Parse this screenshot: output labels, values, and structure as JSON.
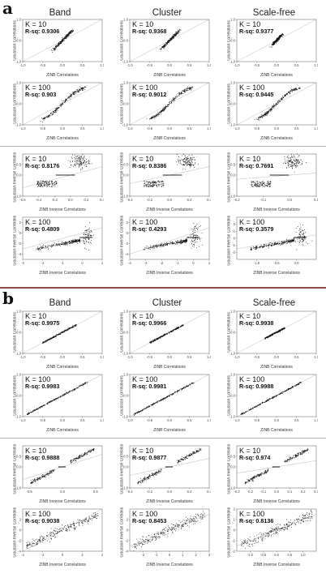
{
  "panels": [
    {
      "letter": "a",
      "column_titles": [
        "Band",
        "Cluster",
        "Scale-free"
      ],
      "row_blocks": [
        {
          "ylabel": "Gaussian Correlations",
          "xlabel": "ZINB Correlations",
          "rows": [
            {
              "k_label": "K = 10",
              "cells": [
                {
                  "rsq_label": "R-sq: 0.9306",
                  "xlim": [
                    -1,
                    1
                  ],
                  "ylim": [
                    -1,
                    1
                  ],
                  "xticks": [
                    "-1.0",
                    "-0.5",
                    "0.0",
                    "0.5",
                    "1.0"
                  ],
                  "yticks": [
                    "-1.0",
                    "0.0",
                    "1.0"
                  ],
                  "shape": "curve",
                  "spread": 0.35
                },
                {
                  "rsq_label": "R-sq: 0.9368",
                  "xlim": [
                    -1,
                    1
                  ],
                  "ylim": [
                    -1,
                    1
                  ],
                  "xticks": [
                    "-1.0",
                    "-0.5",
                    "0.0",
                    "0.5",
                    "1.0"
                  ],
                  "yticks": [
                    "-1.0",
                    "0.0",
                    "1.0"
                  ],
                  "shape": "curve",
                  "spread": 0.3
                },
                {
                  "rsq_label": "R-sq: 0.9377",
                  "xlim": [
                    -1,
                    1
                  ],
                  "ylim": [
                    -1,
                    1
                  ],
                  "xticks": [
                    "-1.0",
                    "-0.5",
                    "0.0",
                    "0.5",
                    "1.0"
                  ],
                  "yticks": [
                    "-1.0",
                    "0.0",
                    "1.0"
                  ],
                  "shape": "curve",
                  "spread": 0.15
                }
              ]
            },
            {
              "k_label": "K = 100",
              "cells": [
                {
                  "rsq_label": "R-sq: 0.903",
                  "xlim": [
                    -1,
                    1
                  ],
                  "ylim": [
                    -1,
                    1
                  ],
                  "xticks": [
                    "-1.0",
                    "-0.5",
                    "0.0",
                    "0.5",
                    "1.0"
                  ],
                  "yticks": [
                    "-1.0",
                    "0.0",
                    "1.0"
                  ],
                  "shape": "curve",
                  "spread": 0.8
                },
                {
                  "rsq_label": "R-sq: 0.9012",
                  "xlim": [
                    -1,
                    1
                  ],
                  "ylim": [
                    -1,
                    1
                  ],
                  "xticks": [
                    "-1.0",
                    "-0.5",
                    "0.0",
                    "0.5",
                    "1.0"
                  ],
                  "yticks": [
                    "-1.0",
                    "0.0",
                    "1.0"
                  ],
                  "shape": "curve",
                  "spread": 0.8
                },
                {
                  "rsq_label": "R-sq: 0.9445",
                  "xlim": [
                    -1,
                    1
                  ],
                  "ylim": [
                    -1,
                    1
                  ],
                  "xticks": [
                    "-1.0",
                    "-0.5",
                    "0.0",
                    "0.5",
                    "1.0"
                  ],
                  "yticks": [
                    "-1.0",
                    "0.0",
                    "1.0"
                  ],
                  "shape": "curve",
                  "spread": 0.8
                }
              ]
            }
          ]
        },
        {
          "ylabel": "Gaussian Inverse Correlations",
          "xlabel": "ZINB Inverse Correlations",
          "rows": [
            {
              "k_label": "K = 10",
              "cells": [
                {
                  "rsq_label": "R-sq: 0.8176",
                  "xlim": [
                    -0.6,
                    0.4
                  ],
                  "ylim": [
                    -1,
                    1
                  ],
                  "xticks": [
                    "-0.6",
                    "-0.4",
                    "-0.2",
                    "0.0",
                    "0.2",
                    "0.4"
                  ],
                  "yticks": [
                    "-1.0",
                    "0.0",
                    "0.5"
                  ],
                  "shape": "cluster"
                },
                {
                  "rsq_label": "R-sq: 0.8386",
                  "xlim": [
                    -0.4,
                    0.4
                  ],
                  "ylim": [
                    -1,
                    1
                  ],
                  "xticks": [
                    "-0.4",
                    "-0.2",
                    "0.0",
                    "0.2",
                    "0.4"
                  ],
                  "yticks": [
                    "-1.0",
                    "0.0",
                    "0.5"
                  ],
                  "shape": "cluster"
                },
                {
                  "rsq_label": "R-sq: 0.7691",
                  "xlim": [
                    -0.2,
                    0.1
                  ],
                  "ylim": [
                    -1,
                    1
                  ],
                  "xticks": [
                    "-0.2",
                    "-0.1",
                    "0.0",
                    "0.1"
                  ],
                  "yticks": [
                    "-1.0",
                    "0.0",
                    "0.5"
                  ],
                  "shape": "cluster"
                }
              ]
            },
            {
              "k_label": "K = 100",
              "cells": [
                {
                  "rsq_label": "R-sq: 0.4809",
                  "xlim": [
                    -3,
                    1
                  ],
                  "ylim": [
                    -5,
                    3
                  ],
                  "xticks": [
                    "-3",
                    "-2",
                    "-1",
                    "0",
                    "1"
                  ],
                  "yticks": [
                    "-4",
                    "-2",
                    "0",
                    "2"
                  ],
                  "shape": "inverse"
                },
                {
                  "rsq_label": "R-sq: 0.4293",
                  "xlim": [
                    -4,
                    1
                  ],
                  "ylim": [
                    -5,
                    3
                  ],
                  "xticks": [
                    "-4",
                    "-3",
                    "-2",
                    "-1",
                    "0",
                    "1"
                  ],
                  "yticks": [
                    "-4",
                    "-2",
                    "0",
                    "2"
                  ],
                  "shape": "inverse"
                },
                {
                  "rsq_label": "R-sq: 0.3579",
                  "xlim": [
                    -1.5,
                    0.5
                  ],
                  "ylim": [
                    -3,
                    3
                  ],
                  "xticks": [
                    "-1.0",
                    "-0.5",
                    "0.0"
                  ],
                  "yticks": [
                    "-2",
                    "-1",
                    "0",
                    "1",
                    "2"
                  ],
                  "shape": "inverse"
                }
              ]
            }
          ]
        }
      ]
    },
    {
      "letter": "b",
      "column_titles": [
        "Band",
        "Cluster",
        "Scale-free"
      ],
      "row_blocks": [
        {
          "ylabel": "Gaussian Correlations",
          "xlabel": "ZINB Correlations",
          "rows": [
            {
              "k_label": "K = 10",
              "cells": [
                {
                  "rsq_label": "R-sq: 0.9975",
                  "xlim": [
                    -1,
                    1
                  ],
                  "ylim": [
                    -1,
                    1
                  ],
                  "xticks": [
                    "-1.0",
                    "-0.5",
                    "0.0",
                    "0.5",
                    "1.0"
                  ],
                  "yticks": [
                    "-1.0",
                    "0.0",
                    "1.0"
                  ],
                  "shape": "line",
                  "spread": 0.5
                },
                {
                  "rsq_label": "R-sq: 0.9966",
                  "xlim": [
                    -1,
                    1
                  ],
                  "ylim": [
                    -1,
                    1
                  ],
                  "xticks": [
                    "-1.0",
                    "-0.5",
                    "0.0",
                    "0.5",
                    "1.0"
                  ],
                  "yticks": [
                    "-1.0",
                    "0.0",
                    "1.0"
                  ],
                  "shape": "line",
                  "spread": 0.5
                },
                {
                  "rsq_label": "R-sq: 0.9938",
                  "xlim": [
                    -1,
                    1
                  ],
                  "ylim": [
                    -1,
                    1
                  ],
                  "xticks": [
                    "-1.0",
                    "-0.5",
                    "0.0",
                    "0.5",
                    "1.0"
                  ],
                  "yticks": [
                    "-1.0",
                    "0.0",
                    "1.0"
                  ],
                  "shape": "line",
                  "spread": 0.3
                }
              ]
            },
            {
              "k_label": "K = 100",
              "cells": [
                {
                  "rsq_label": "R-sq: 0.9983",
                  "xlim": [
                    -1,
                    1
                  ],
                  "ylim": [
                    -1,
                    1
                  ],
                  "xticks": [
                    "-1.0",
                    "-0.5",
                    "0.0",
                    "0.5",
                    "1.0"
                  ],
                  "yticks": [
                    "-1.0",
                    "0.0",
                    "1.0"
                  ],
                  "shape": "line",
                  "spread": 0.9
                },
                {
                  "rsq_label": "R-sq: 0.9981",
                  "xlim": [
                    -1,
                    1
                  ],
                  "ylim": [
                    -1,
                    1
                  ],
                  "xticks": [
                    "-1.0",
                    "-0.5",
                    "0.0",
                    "0.5",
                    "1.0"
                  ],
                  "yticks": [
                    "-1.0",
                    "0.0",
                    "1.0"
                  ],
                  "shape": "line",
                  "spread": 0.9
                },
                {
                  "rsq_label": "R-sq: 0.9988",
                  "xlim": [
                    -1,
                    1
                  ],
                  "ylim": [
                    -1,
                    1
                  ],
                  "xticks": [
                    "-1.0",
                    "-0.5",
                    "0.0",
                    "0.5",
                    "1.0"
                  ],
                  "yticks": [
                    "-1.0",
                    "0.0",
                    "1.0"
                  ],
                  "shape": "line",
                  "spread": 0.9
                }
              ]
            }
          ]
        },
        {
          "ylabel": "Gaussian Inverse Correlations",
          "xlabel": "ZINB Inverse Correlations",
          "rows": [
            {
              "k_label": "K = 10",
              "cells": [
                {
                  "rsq_label": "R-sq: 0.9888",
                  "xlim": [
                    -0.6,
                    0.6
                  ],
                  "ylim": [
                    -1,
                    1
                  ],
                  "xticks": [
                    "-0.5",
                    "0.0",
                    "0.5"
                  ],
                  "yticks": [
                    "-1.0",
                    "0.0",
                    "0.5"
                  ],
                  "shape": "bcluster"
                },
                {
                  "rsq_label": "R-sq: 0.9877",
                  "xlim": [
                    -0.4,
                    0.4
                  ],
                  "ylim": [
                    -1,
                    1
                  ],
                  "xticks": [
                    "-0.4",
                    "-0.2",
                    "0.0",
                    "0.2",
                    "0.4"
                  ],
                  "yticks": [
                    "-1.0",
                    "0.0",
                    "0.5"
                  ],
                  "shape": "bcluster"
                },
                {
                  "rsq_label": "R-sq: 0.974",
                  "xlim": [
                    -0.3,
                    0.3
                  ],
                  "ylim": [
                    -1,
                    1
                  ],
                  "xticks": [
                    "-0.3",
                    "-0.2",
                    "-0.1",
                    "0.0",
                    "0.1",
                    "0.2",
                    "0.3"
                  ],
                  "yticks": [
                    "-1.0",
                    "0.0",
                    "0.5"
                  ],
                  "shape": "bcluster"
                }
              ]
            },
            {
              "k_label": "K = 100",
              "cells": [
                {
                  "rsq_label": "R-sq: 0.9038",
                  "xlim": [
                    -4,
                    4
                  ],
                  "ylim": [
                    -4,
                    4
                  ],
                  "xticks": [
                    "-4",
                    "-2",
                    "0",
                    "2",
                    "4"
                  ],
                  "yticks": [
                    "-4",
                    "-2",
                    "0",
                    "2"
                  ],
                  "shape": "binverse"
                },
                {
                  "rsq_label": "R-sq: 0.8453",
                  "xlim": [
                    -3,
                    3
                  ],
                  "ylim": [
                    -4,
                    4
                  ],
                  "xticks": [
                    "-2",
                    "-1",
                    "0",
                    "1",
                    "2",
                    "3"
                  ],
                  "yticks": [
                    "-4",
                    "-2",
                    "0",
                    "2"
                  ],
                  "shape": "binverse"
                },
                {
                  "rsq_label": "R-sq: 0.8136",
                  "xlim": [
                    -1.5,
                    1.5
                  ],
                  "ylim": [
                    -2,
                    2
                  ],
                  "xticks": [
                    "-1.0",
                    "-0.5",
                    "0.0",
                    "0.5",
                    "1.0"
                  ],
                  "yticks": [
                    "-2",
                    "-1",
                    "0",
                    "1",
                    "2"
                  ],
                  "shape": "binverse"
                }
              ]
            }
          ]
        }
      ]
    }
  ]
}
